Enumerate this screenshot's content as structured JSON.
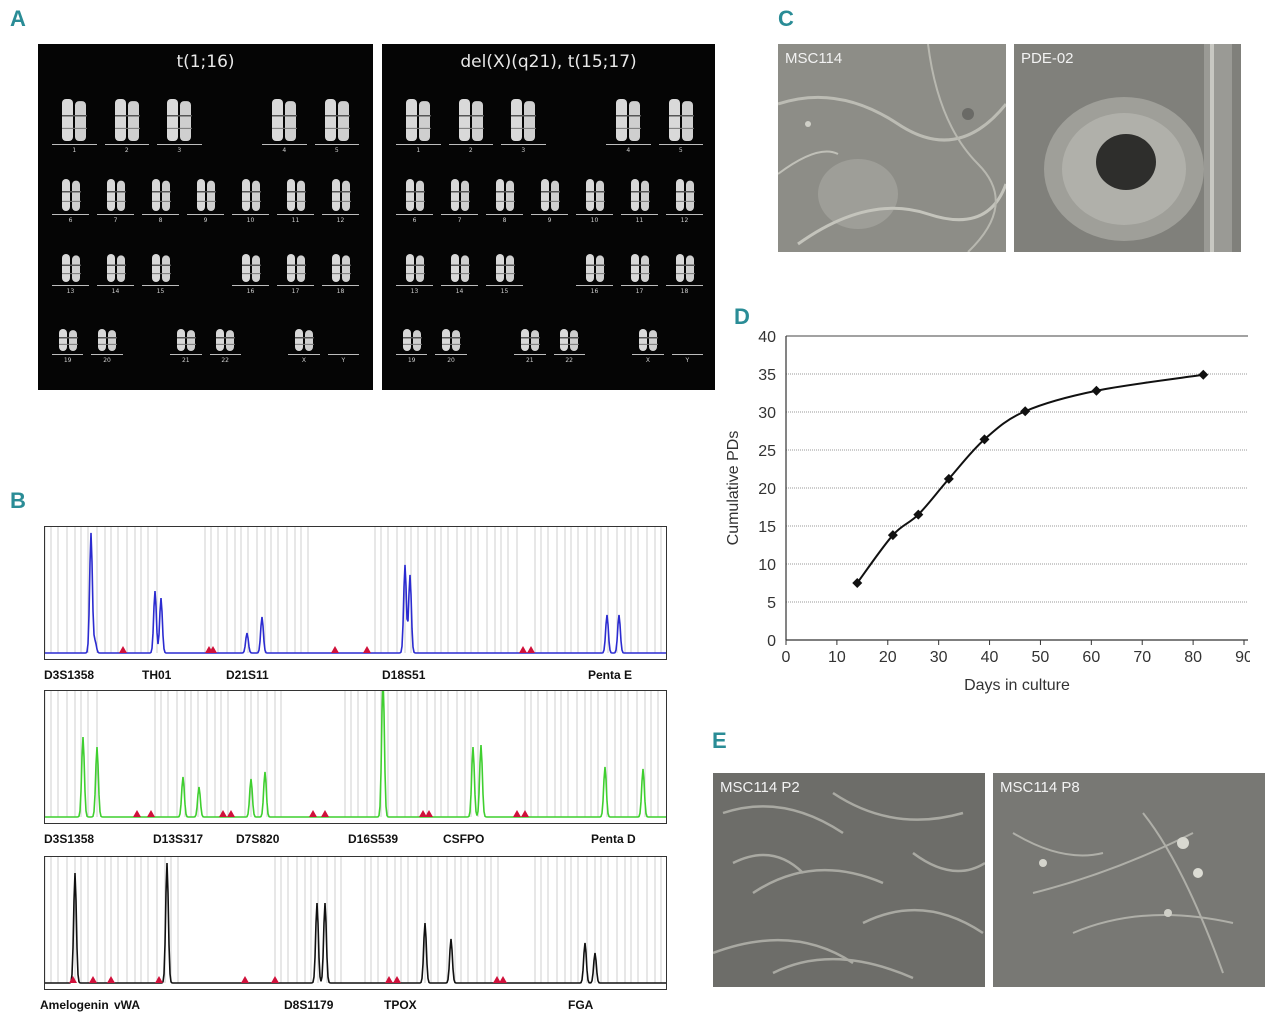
{
  "panels": {
    "a": "A",
    "b": "B",
    "c": "C",
    "d": "D",
    "e": "E"
  },
  "karyotypes": [
    {
      "title": "t(1;16)"
    },
    {
      "title": "del(X)(q21), t(15;17)"
    }
  ],
  "chromosome_labels": [
    "1",
    "2",
    "3",
    "4",
    "5",
    "6",
    "7",
    "8",
    "9",
    "10",
    "11",
    "12",
    "13",
    "14",
    "15",
    "16",
    "17",
    "18",
    "19",
    "20",
    "21",
    "22",
    "X",
    "Y"
  ],
  "photos_c": [
    {
      "label": "MSC114"
    },
    {
      "label": "PDE-02"
    }
  ],
  "photos_e": [
    {
      "label": "MSC114 P2"
    },
    {
      "label": "MSC114 P8"
    }
  ],
  "str_rows": [
    {
      "color": "#2b2bd0",
      "loci": [
        "D3S1358",
        "TH01",
        "D21S11",
        "D18S51",
        "Penta E"
      ]
    },
    {
      "color": "#3fcf2f",
      "loci": [
        "D3S1358",
        "D13S317",
        "D7S820",
        "D16S539",
        "CSFPO",
        "Penta D"
      ]
    },
    {
      "color": "#111111",
      "loci": [
        "Amelogenin",
        "vWA",
        "D8S1179",
        "TPOX",
        "FGA"
      ]
    }
  ],
  "chart_data": {
    "type": "line",
    "xlabel": "Days in culture",
    "ylabel": "Cumulative PDs",
    "xlim": [
      0,
      90
    ],
    "ylim": [
      0,
      40
    ],
    "xticks": [
      0,
      10,
      20,
      30,
      40,
      50,
      60,
      70,
      80,
      90
    ],
    "yticks": [
      0,
      5,
      10,
      15,
      20,
      25,
      30,
      35,
      40
    ],
    "grid": true,
    "series": [
      {
        "x": [
          14,
          21,
          26,
          32,
          39,
          47,
          61,
          82
        ],
        "y": [
          7.5,
          13.8,
          16.5,
          21.2,
          26.4,
          30.1,
          32.8,
          34.9
        ]
      }
    ]
  }
}
